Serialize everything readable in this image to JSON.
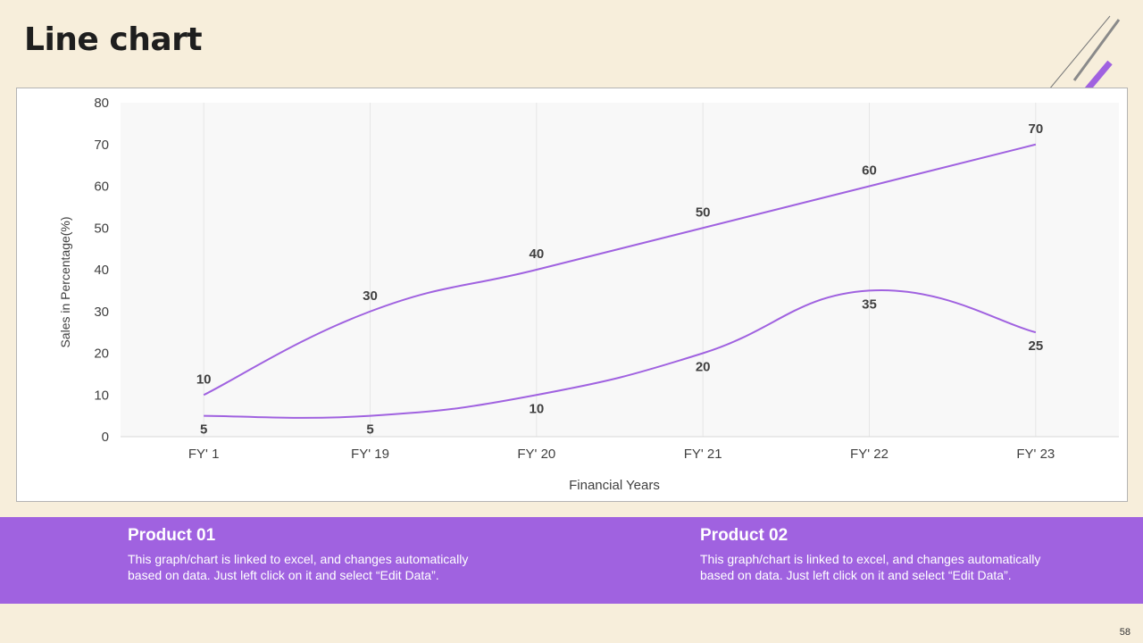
{
  "slide": {
    "title": "Line chart",
    "page_number": "58"
  },
  "colors": {
    "background": "#f7eedb",
    "accent": "#a062e0",
    "line": "#a062e0",
    "deco_gray": "#7a7a7a"
  },
  "chart_data": {
    "type": "line",
    "xlabel": "Financial Years",
    "ylabel": "Sales in Percentage(%)",
    "ylim": [
      0,
      80
    ],
    "yticks": [
      0,
      10,
      20,
      30,
      40,
      50,
      60,
      70,
      80
    ],
    "categories": [
      "FY' 1",
      "FY' 19",
      "FY' 20",
      "FY' 21",
      "FY' 22",
      "FY' 23"
    ],
    "smooth": true,
    "grid": "vertical",
    "legend": "none",
    "data_labels": true,
    "series": [
      {
        "values": [
          10,
          30,
          40,
          50,
          60,
          70
        ]
      },
      {
        "values": [
          5,
          5,
          10,
          20,
          35,
          25
        ]
      }
    ]
  },
  "products": [
    {
      "title": "Product 01",
      "description": "This graph/chart is linked to excel, and changes automatically based on data. Just left click on it and select “Edit Data”."
    },
    {
      "title": "Product 02",
      "description": "This graph/chart is linked to excel, and changes automatically based on data. Just left click on it and select “Edit Data”."
    }
  ]
}
